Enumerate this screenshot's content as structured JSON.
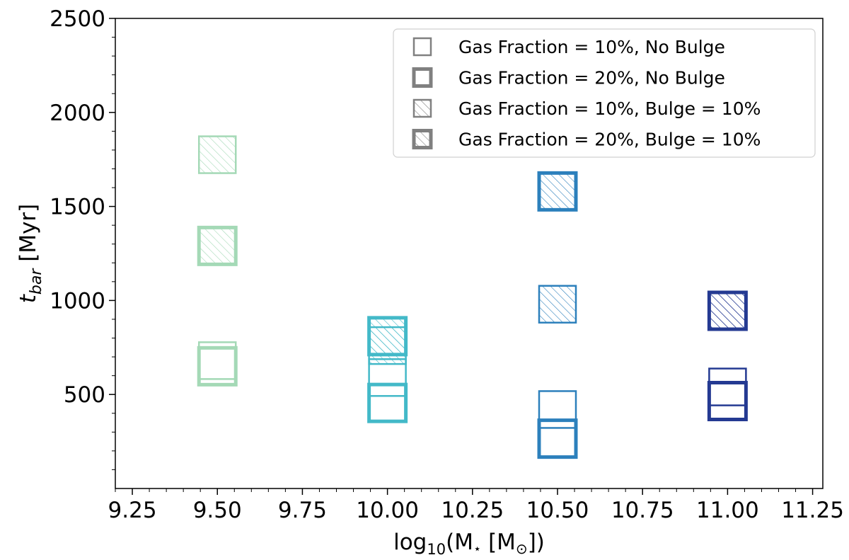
{
  "chart_data": {
    "type": "scatter",
    "marker": "square",
    "xlabel": {
      "prefix": "log",
      "sub": "10",
      "main": "(M",
      "star": "⋆",
      "mid": " [M",
      "sun": "⊙",
      "end": "])"
    },
    "ylabel": {
      "main": "t",
      "sub": "bar",
      "rest": " [Myr]"
    },
    "xlim": [
      9.2,
      11.28
    ],
    "ylim": [
      0,
      2500
    ],
    "xticks": [
      "9.25",
      "9.50",
      "9.75",
      "10.00",
      "10.25",
      "10.50",
      "10.75",
      "11.00",
      "11.25"
    ],
    "xtick_values": [
      9.25,
      9.5,
      9.75,
      10.0,
      10.25,
      10.5,
      10.75,
      11.0,
      11.25
    ],
    "yticks": [
      "500",
      "1000",
      "1500",
      "2000",
      "2500"
    ],
    "ytick_values": [
      500,
      1000,
      1500,
      2000,
      2500
    ],
    "y_minor_step": 100,
    "x_minor_step": 0.05,
    "legend_position": "top-right",
    "legend": [
      {
        "label": "Gas Fraction = 10%, No Bulge",
        "gas": 10,
        "bulge": false
      },
      {
        "label": "Gas Fraction = 20%, No Bulge",
        "gas": 20,
        "bulge": false
      },
      {
        "label": "Gas Fraction = 10%, Bulge = 10%",
        "gas": 10,
        "bulge": true
      },
      {
        "label": "Gas Fraction = 20%, Bulge = 10%",
        "gas": 20,
        "bulge": true
      }
    ],
    "mass_colors": {
      "9.5": "#a4d9b6",
      "10.0": "#43b9c8",
      "10.5": "#2c80bc",
      "11.0": "#243a92"
    },
    "legend_color": "#808080",
    "series": [
      {
        "gas": 10,
        "bulge": false,
        "points": [
          {
            "x": 9.5,
            "y": 680
          },
          {
            "x": 10.0,
            "y": 590
          },
          {
            "x": 10.5,
            "y": 420
          },
          {
            "x": 11.0,
            "y": 540
          }
        ]
      },
      {
        "gas": 20,
        "bulge": false,
        "points": [
          {
            "x": 9.5,
            "y": 650
          },
          {
            "x": 10.0,
            "y": 455
          },
          {
            "x": 10.5,
            "y": 265
          },
          {
            "x": 11.0,
            "y": 465
          }
        ]
      },
      {
        "gas": 10,
        "bulge": true,
        "points": [
          {
            "x": 9.5,
            "y": 1775
          },
          {
            "x": 10.0,
            "y": 760
          },
          {
            "x": 10.5,
            "y": 980
          },
          {
            "x": 11.0,
            "y": 945
          }
        ]
      },
      {
        "gas": 20,
        "bulge": true,
        "points": [
          {
            "x": 9.5,
            "y": 1290
          },
          {
            "x": 10.0,
            "y": 810
          },
          {
            "x": 10.5,
            "y": 1580
          },
          {
            "x": 11.0,
            "y": 945
          }
        ]
      }
    ]
  }
}
